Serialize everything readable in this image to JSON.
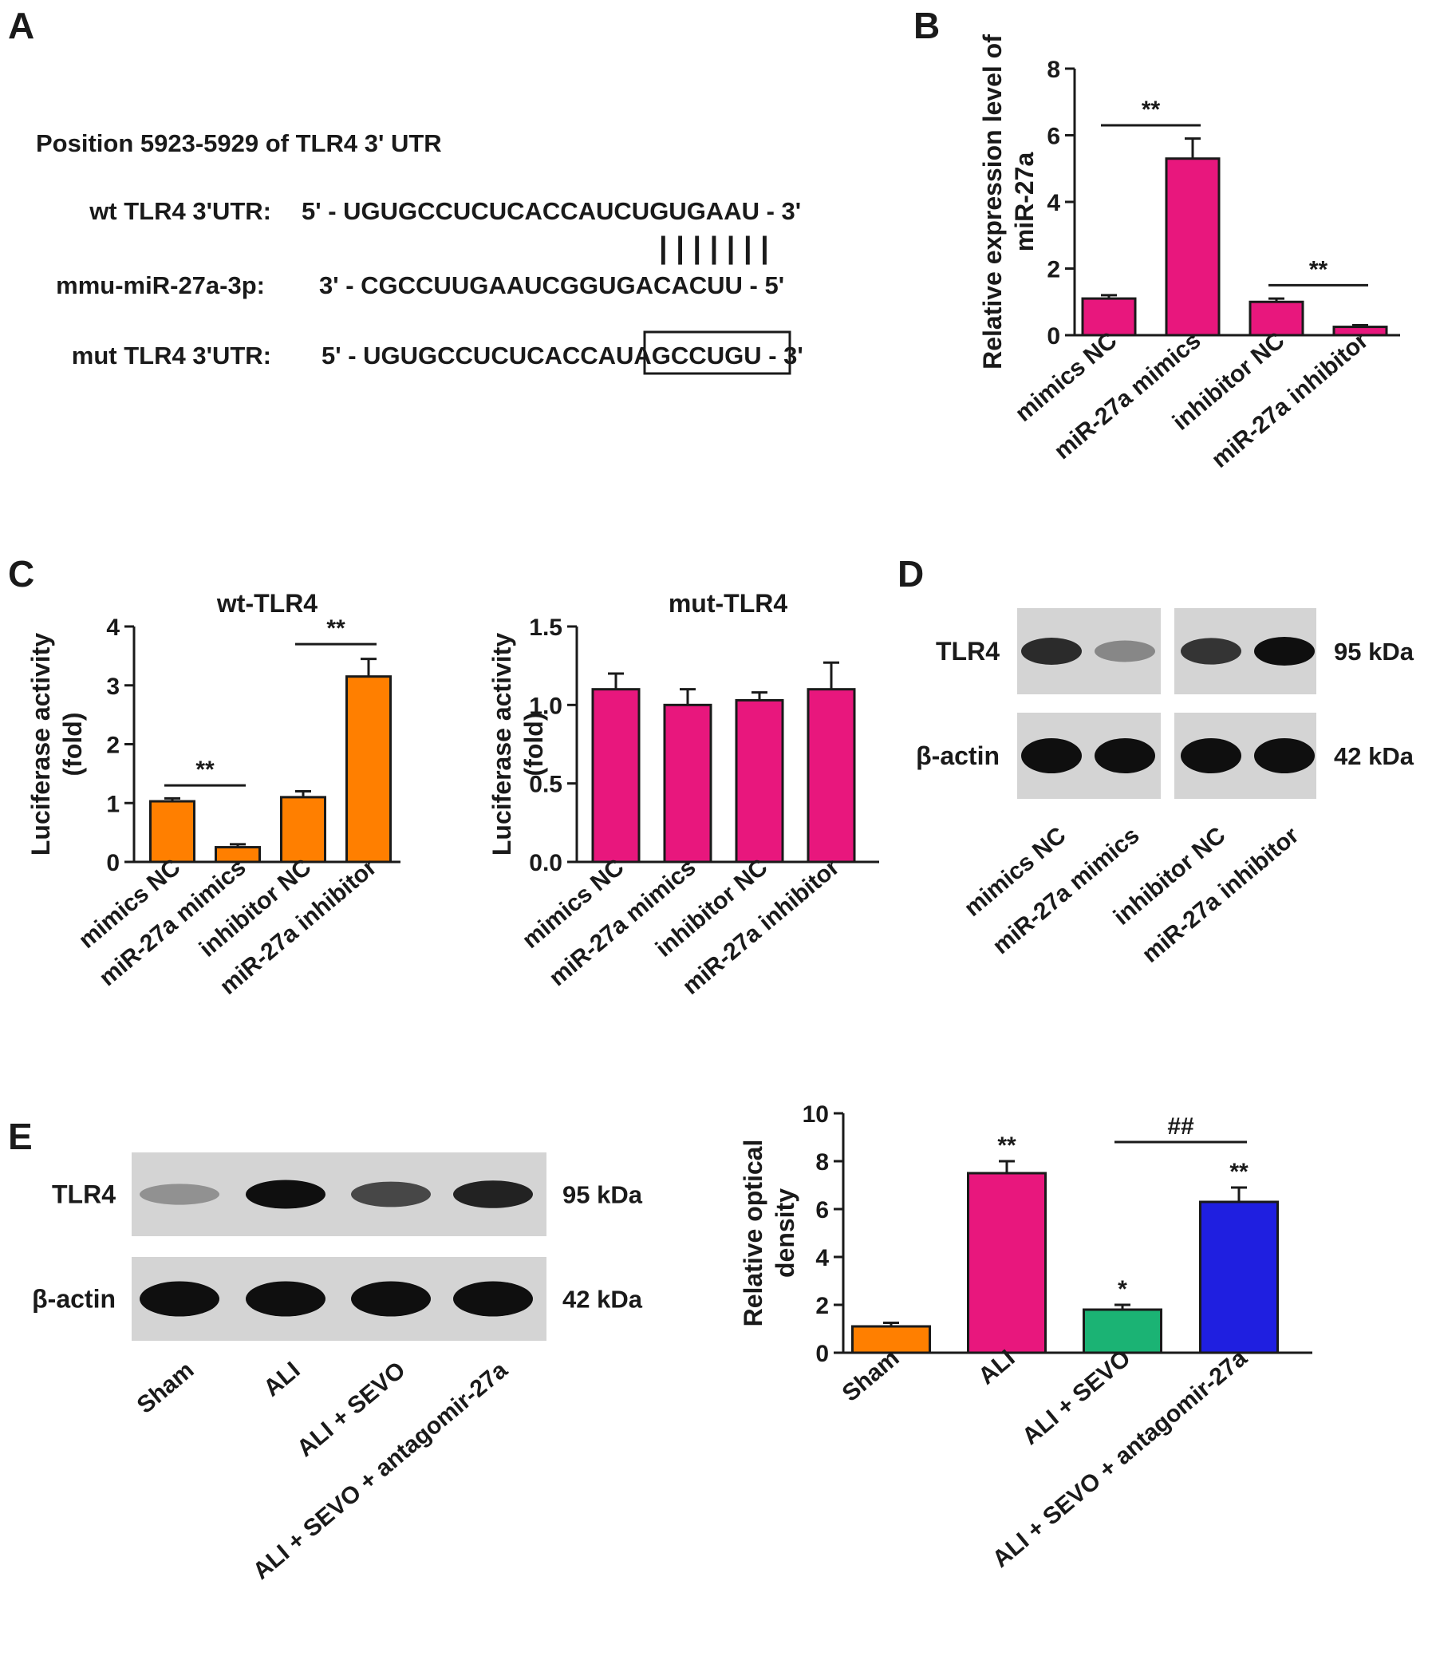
{
  "panel_labels": [
    "A",
    "B",
    "C",
    "D",
    "E"
  ],
  "sequence": {
    "heading": "Position 5923-5929 of TLR4 3' UTR",
    "rows": [
      {
        "label": "wt TLR4 3'UTR:",
        "seq": "5' - UGUGCCUCUCACCAUCUGUGAAU - 3'"
      },
      {
        "label": "mmu-miR-27a-3p:",
        "seq": "3' -  CGCCUUGAAUCGGUGACACUU - 5'"
      },
      {
        "label": "mut TLR4 3'UTR:",
        "seq": "5' - UGUGCCUCUCACCAUAGCCUGU - 3'"
      }
    ],
    "pairing_marks": "| | | | | | |"
  },
  "colors": {
    "magenta": "#e8177d",
    "orange": "#ff7f00",
    "green": "#1bb374",
    "blue": "#1f1fe0",
    "axis": "#1a1a1a"
  },
  "western_d": {
    "bands": [
      {
        "label": "TLR4",
        "kda": "95 kDa",
        "intensity": [
          0.85,
          0.35,
          0.8,
          1.0
        ]
      },
      {
        "label": "β-actin",
        "kda": "42 kDa",
        "intensity": [
          1.0,
          1.0,
          1.0,
          1.0
        ]
      }
    ],
    "lanes": [
      "mimics NC",
      "miR-27a mimics",
      "inhibitor NC",
      "miR-27a inhibitor"
    ]
  },
  "western_e": {
    "bands": [
      {
        "label": "TLR4",
        "kda": "95 kDa",
        "intensity": [
          0.3,
          1.0,
          0.7,
          0.9
        ]
      },
      {
        "label": "β-actin",
        "kda": "42 kDa",
        "intensity": [
          1.0,
          1.0,
          1.0,
          1.0
        ]
      }
    ],
    "lanes": [
      "Sham",
      "ALI",
      "ALI + SEVO",
      "ALI + SEVO + antagomir-27a"
    ]
  },
  "chart_data": [
    {
      "id": "B",
      "type": "bar",
      "ylabel": "Relative expression level of miR-27a",
      "categories": [
        "mimics NC",
        "miR-27a mimics",
        "inhibitor NC",
        "miR-27a inhibitor"
      ],
      "values": [
        1.1,
        5.3,
        1.0,
        0.25
      ],
      "errors": [
        0.1,
        0.6,
        0.1,
        0.05
      ],
      "ylim": [
        0,
        8
      ],
      "yticks": [
        "0",
        "2",
        "4",
        "6",
        "8"
      ],
      "colors": [
        "#e8177d",
        "#e8177d",
        "#e8177d",
        "#e8177d"
      ],
      "significance": [
        {
          "from": 0,
          "to": 1,
          "label": "**",
          "at": 6.3
        },
        {
          "from": 2,
          "to": 3,
          "label": "**",
          "at": 1.5
        }
      ]
    },
    {
      "id": "C1",
      "type": "bar",
      "title": "wt-TLR4",
      "ylabel": "Luciferase activity (fold)",
      "categories": [
        "mimics NC",
        "miR-27a mimics",
        "inhibitor NC",
        "miR-27a inhibitor"
      ],
      "values": [
        1.03,
        0.25,
        1.1,
        3.15
      ],
      "errors": [
        0.05,
        0.05,
        0.1,
        0.3
      ],
      "ylim": [
        0,
        4
      ],
      "yticks": [
        "0",
        "1",
        "2",
        "3",
        "4"
      ],
      "colors": [
        "#ff7f00",
        "#ff7f00",
        "#ff7f00",
        "#ff7f00"
      ],
      "significance": [
        {
          "from": 0,
          "to": 1,
          "label": "**",
          "at": 1.3
        },
        {
          "from": 2,
          "to": 3,
          "label": "**",
          "at": 3.7
        }
      ]
    },
    {
      "id": "C2",
      "type": "bar",
      "title": "mut-TLR4",
      "ylabel": "Luciferase activity (fold)",
      "categories": [
        "mimics NC",
        "miR-27a mimics",
        "inhibitor NC",
        "miR-27a inhibitor"
      ],
      "values": [
        1.1,
        1.0,
        1.03,
        1.1
      ],
      "errors": [
        0.1,
        0.1,
        0.05,
        0.17
      ],
      "ylim": [
        0,
        1.5
      ],
      "yticks": [
        "0.0",
        "0.5",
        "1.0",
        "1.5"
      ],
      "colors": [
        "#e8177d",
        "#e8177d",
        "#e8177d",
        "#e8177d"
      ],
      "significance": []
    },
    {
      "id": "E",
      "type": "bar",
      "ylabel": "Relative optical density",
      "categories": [
        "Sham",
        "ALI",
        "ALI + SEVO",
        "ALI + SEVO + antagomir-27a"
      ],
      "values": [
        1.1,
        7.5,
        1.8,
        6.3
      ],
      "errors": [
        0.15,
        0.5,
        0.2,
        0.6
      ],
      "ylim": [
        0,
        10
      ],
      "yticks": [
        "0",
        "2",
        "4",
        "6",
        "8",
        "10"
      ],
      "colors": [
        "#ff7f00",
        "#e8177d",
        "#1bb374",
        "#1f1fe0"
      ],
      "bar_labels": [
        "",
        "**",
        "*",
        "**"
      ],
      "significance": [
        {
          "from": 2,
          "to": 3,
          "label": "##",
          "at": 8.8
        }
      ]
    }
  ]
}
